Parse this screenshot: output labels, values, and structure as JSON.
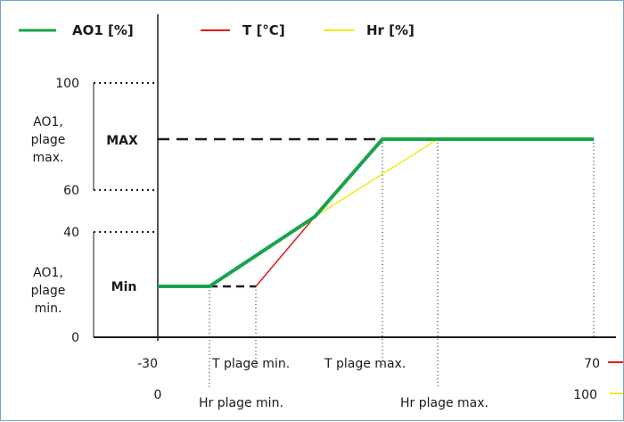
{
  "legend": {
    "ao1": "AO1 [%]",
    "t": "T [°C]",
    "hr": "Hr [%]"
  },
  "y_ticks": {
    "v100": "100",
    "v60": "60",
    "v40": "40",
    "v0": "0"
  },
  "y_labels": {
    "max_group": [
      "AO1,",
      "plage",
      "max."
    ],
    "min_group": [
      "AO1,",
      "plage",
      "min."
    ],
    "max": "MAX",
    "min": "Min"
  },
  "x_axis_t": {
    "start": "-30",
    "end": "70",
    "plage_min": "T plage min.",
    "plage_max": "T plage max."
  },
  "x_axis_hr": {
    "start": "0",
    "end": "100",
    "plage_min": "Hr plage min.",
    "plage_max": "Hr plage max."
  },
  "colors": {
    "ao1": "#1aa34a",
    "t": "#e01b1b",
    "hr": "#f2ea1a",
    "axis": "#1a1a1a",
    "frame": "#7aa1cc"
  }
}
